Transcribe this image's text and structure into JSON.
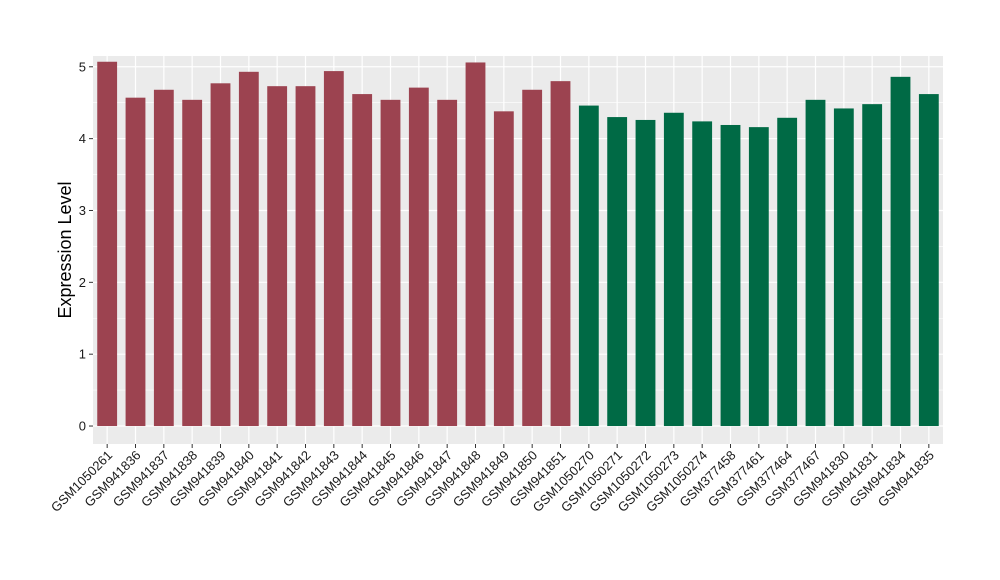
{
  "chart_data": {
    "type": "bar",
    "title": "",
    "xlabel": "",
    "ylabel": "Expression Level",
    "ylim": [
      -0.25,
      5.15
    ],
    "yticks": [
      0,
      1,
      2,
      3,
      4,
      5
    ],
    "grid": true,
    "panel_background": "#ebebeb",
    "categories": [
      "GSM1050261",
      "GSM941836",
      "GSM941837",
      "GSM941838",
      "GSM941839",
      "GSM941840",
      "GSM941841",
      "GSM941842",
      "GSM941843",
      "GSM941844",
      "GSM941845",
      "GSM941846",
      "GSM941847",
      "GSM941848",
      "GSM941849",
      "GSM941850",
      "GSM941851",
      "GSM1050270",
      "GSM1050271",
      "GSM1050272",
      "GSM1050273",
      "GSM1050274",
      "GSM377458",
      "GSM377461",
      "GSM377464",
      "GSM377467",
      "GSM941830",
      "GSM941831",
      "GSM941834",
      "GSM941835"
    ],
    "values": [
      5.07,
      4.57,
      4.68,
      4.54,
      4.77,
      4.93,
      4.73,
      4.73,
      4.94,
      4.62,
      4.54,
      4.71,
      4.54,
      5.06,
      4.38,
      4.68,
      4.8,
      4.46,
      4.3,
      4.26,
      4.36,
      4.24,
      4.19,
      4.16,
      4.29,
      4.54,
      4.42,
      4.48,
      4.86,
      4.62
    ],
    "bar_colors": [
      "#9c4350",
      "#9c4350",
      "#9c4350",
      "#9c4350",
      "#9c4350",
      "#9c4350",
      "#9c4350",
      "#9c4350",
      "#9c4350",
      "#9c4350",
      "#9c4350",
      "#9c4350",
      "#9c4350",
      "#9c4350",
      "#9c4350",
      "#9c4350",
      "#9c4350",
      "#006a45",
      "#006a45",
      "#006a45",
      "#006a45",
      "#006a45",
      "#006a45",
      "#006a45",
      "#006a45",
      "#006a45",
      "#006a45",
      "#006a45",
      "#006a45",
      "#006a45"
    ]
  }
}
